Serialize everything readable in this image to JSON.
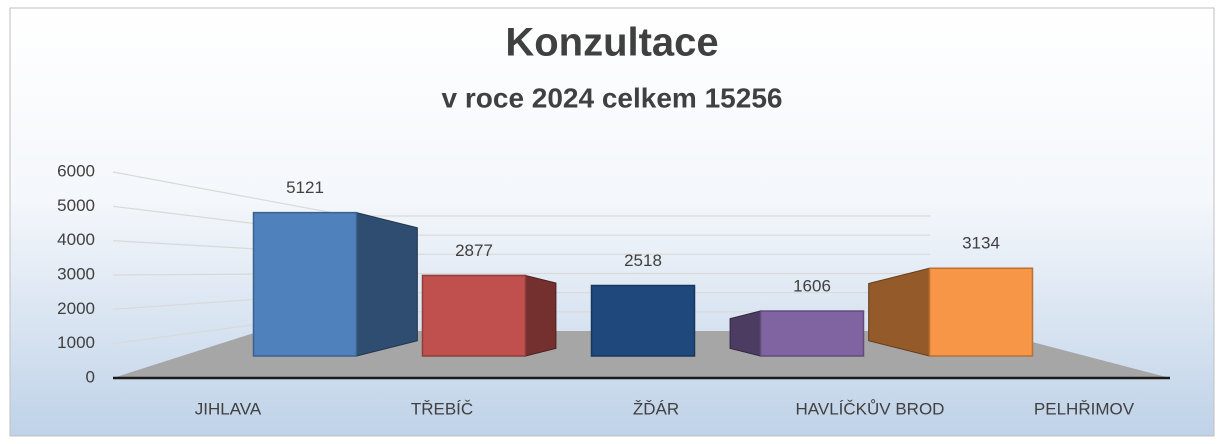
{
  "chart_data": {
    "type": "bar3d",
    "title": "Konzultace",
    "subtitle": "v roce 2024 celkem 15256",
    "categories": [
      "JIHLAVA",
      "TŘEBÍČ",
      "ŽĎÁR",
      "HAVLÍČKŮV BROD",
      "PELHŘIMOV"
    ],
    "values": [
      5121,
      2877,
      2518,
      1606,
      3134
    ],
    "colors": [
      "#4f81bd",
      "#c0504d",
      "#1f497d",
      "#8064a2",
      "#f79646"
    ],
    "ylim": [
      0,
      6000
    ],
    "yticks": [
      0,
      1000,
      2000,
      3000,
      4000,
      5000,
      6000
    ],
    "grid": true
  }
}
